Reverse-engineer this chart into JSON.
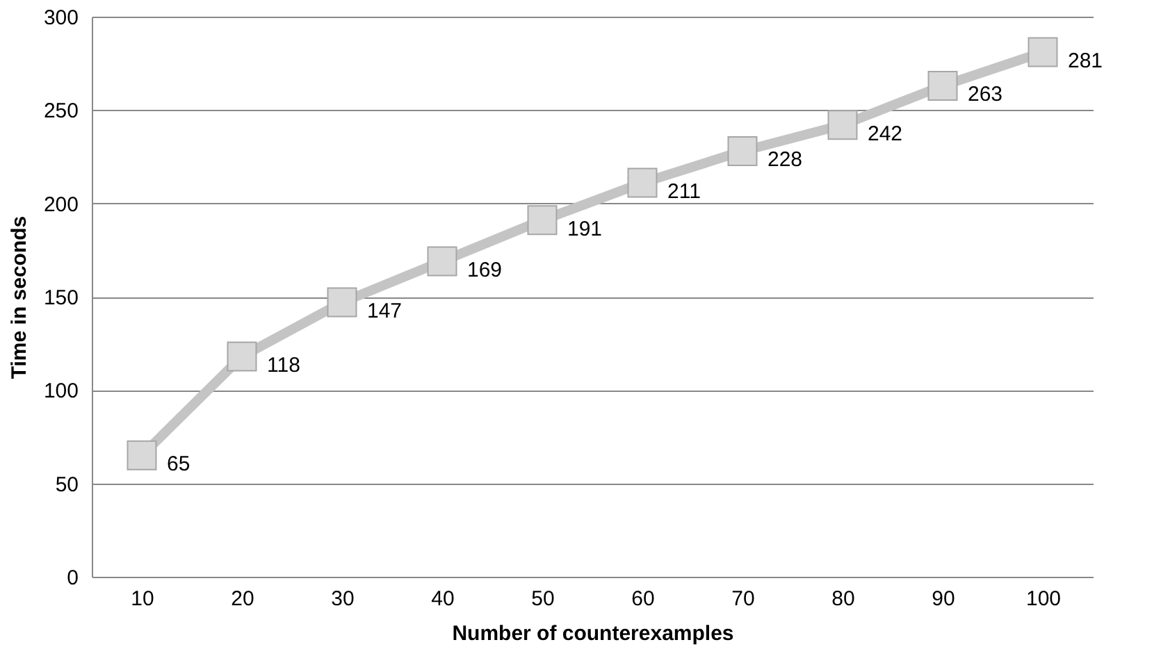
{
  "chart_data": {
    "type": "line",
    "xlabel": "Number of counterexamples",
    "ylabel": "Time in seconds",
    "categories": [
      "10",
      "20",
      "30",
      "40",
      "50",
      "60",
      "70",
      "80",
      "90",
      "100"
    ],
    "series": [
      {
        "color": "#c4c4c4",
        "values": [
          65,
          118,
          147,
          169,
          191,
          211,
          228,
          242,
          263,
          281
        ]
      }
    ],
    "ylim": [
      0,
      300
    ],
    "yticks": [
      0,
      50,
      100,
      150,
      200,
      250,
      300
    ],
    "grid": "y",
    "marker": "square",
    "line_style": "solid",
    "data_labels": true
  }
}
